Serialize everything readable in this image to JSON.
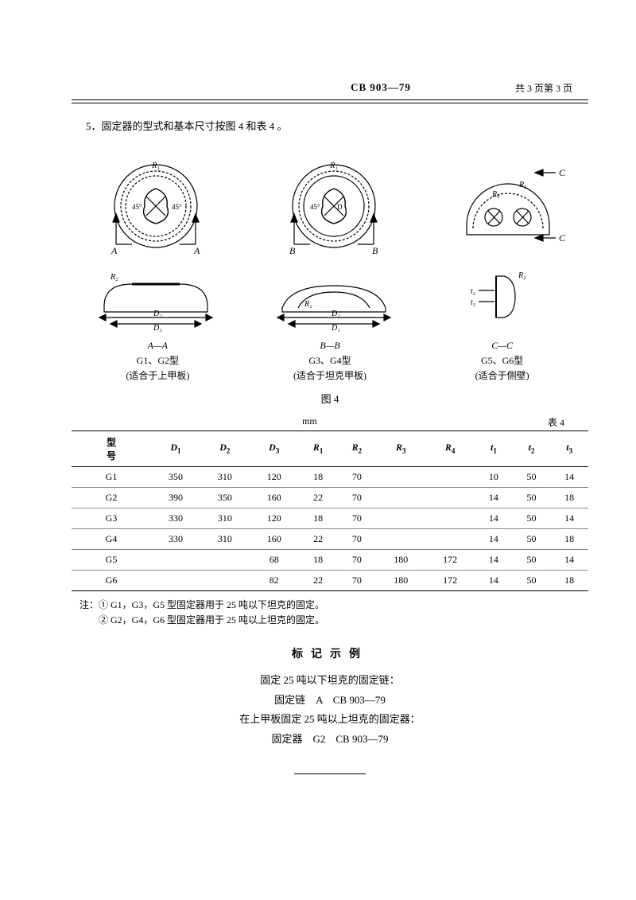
{
  "header": {
    "standard_code": "CB 903—79",
    "page_info": "共 3 页第 3 页"
  },
  "intro_text": "5．固定器的型式和基本尺寸按图 4 和表 4 。",
  "figure_labels": {
    "col1": {
      "section": "A—A",
      "model": "G1、G2型",
      "note": "(适合于上甲板)"
    },
    "col2": {
      "section": "B—B",
      "model": "G3、G4型",
      "note": "(适合于坦克甲板)"
    },
    "col3": {
      "section": "C—C",
      "model": "G5、G6型",
      "note": "(适合于侧壁)"
    }
  },
  "figure_title": "图 4",
  "table_meta": {
    "unit": "mm",
    "table_no": "表 4"
  },
  "table": {
    "columns": [
      "型　号",
      "D₁",
      "D₂",
      "D₃",
      "R₁",
      "R₂",
      "R₃",
      "R₄",
      "t₁",
      "t₂",
      "t₃"
    ],
    "rows": [
      [
        "G1",
        "350",
        "310",
        "120",
        "18",
        "70",
        "",
        "",
        "10",
        "50",
        "14"
      ],
      [
        "G2",
        "390",
        "350",
        "160",
        "22",
        "70",
        "",
        "",
        "14",
        "50",
        "18"
      ],
      [
        "G3",
        "330",
        "310",
        "120",
        "18",
        "70",
        "",
        "",
        "14",
        "50",
        "14"
      ],
      [
        "G4",
        "330",
        "310",
        "160",
        "22",
        "70",
        "",
        "",
        "14",
        "50",
        "18"
      ],
      [
        "G5",
        "",
        "",
        "68",
        "18",
        "70",
        "180",
        "172",
        "14",
        "50",
        "14"
      ],
      [
        "G6",
        "",
        "",
        "82",
        "22",
        "70",
        "180",
        "172",
        "14",
        "50",
        "18"
      ]
    ]
  },
  "notes": {
    "line1": "注：① G1，G3，G5 型固定器用于 25 吨以下坦克的固定。",
    "line2": "　　② G2，G4，G6 型固定器用于 25 吨以上坦克的固定。"
  },
  "marking": {
    "title": "标记示例",
    "lines": [
      "固定 25 吨以下坦克的固定链：",
      "固定链　A　CB 903—79",
      "在上甲板固定 25 吨以上坦克的固定器：",
      "固定器　G2　CB 903—79"
    ]
  },
  "diagram": {
    "stroke": "#000000",
    "bg": "#ffffff",
    "annotations": {
      "top1": {
        "R1": "R₁",
        "ang": "45°",
        "A": "A"
      },
      "top2": {
        "R1": "R₁",
        "ang": "45°",
        "B": "B",
        "D": "D"
      },
      "top3": {
        "R3": "R₃",
        "R4": "R₄",
        "C": "C"
      },
      "bot": {
        "R2": "R₂",
        "D1": "D₁",
        "D2": "D₂",
        "t1": "t₁",
        "t2": "t₂",
        "t3": "t₃"
      }
    }
  }
}
